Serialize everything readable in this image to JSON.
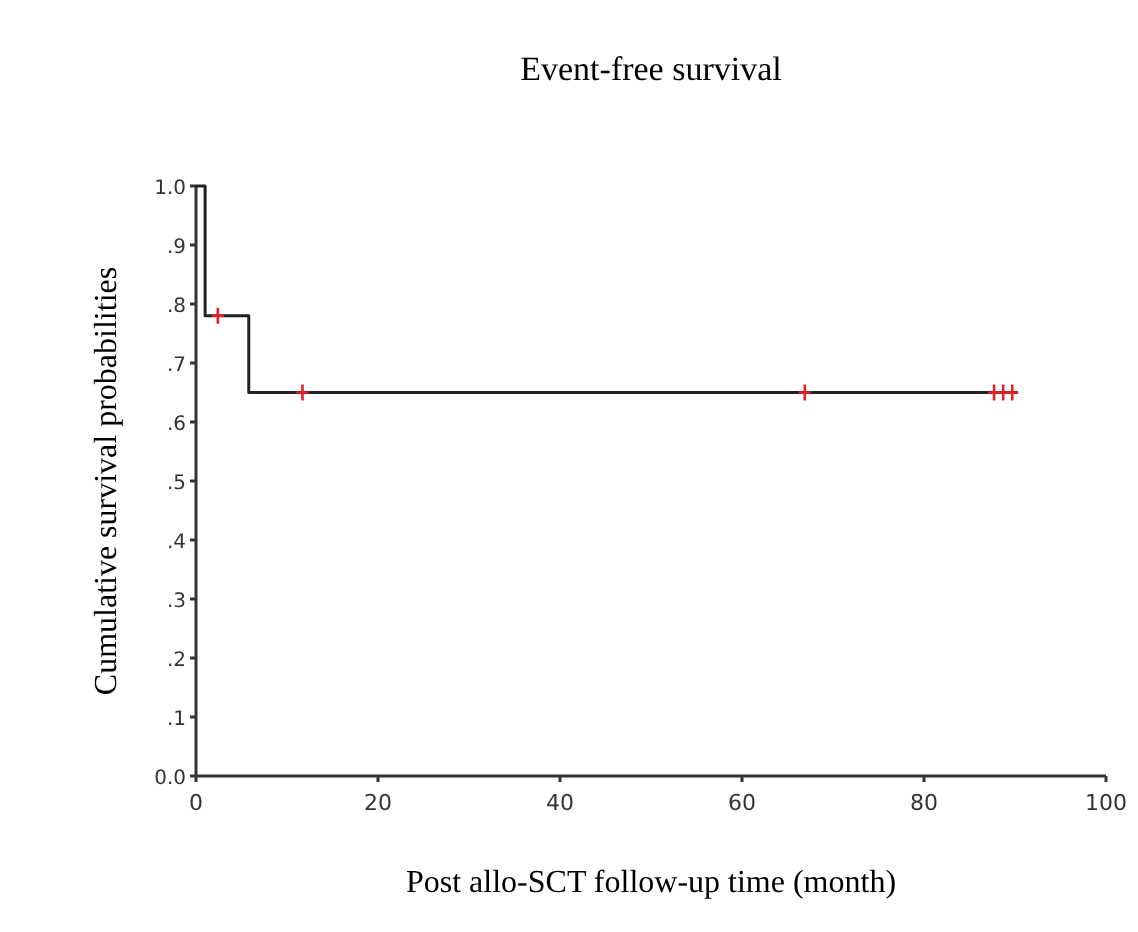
{
  "chart_data": {
    "type": "step",
    "title": "Event-free survival",
    "xlabel": "Post allo-SCT follow-up time (month)",
    "ylabel": "Cumulative survival probabilities",
    "xlim": [
      0,
      100
    ],
    "xticks": [
      0,
      20,
      40,
      60,
      80,
      100
    ],
    "ylim": [
      0,
      1
    ],
    "yticks": [
      {
        "value": 0,
        "label": "0.0"
      },
      {
        "value": 0.1,
        "label": ".1"
      },
      {
        "value": 0.2,
        "label": ".2"
      },
      {
        "value": 0.3,
        "label": ".3"
      },
      {
        "value": 0.4,
        "label": ".4"
      },
      {
        "value": 0.5,
        "label": ".5"
      },
      {
        "value": 0.6,
        "label": ".6"
      },
      {
        "value": 0.7,
        "label": ".7"
      },
      {
        "value": 0.8,
        "label": ".8"
      },
      {
        "value": 0.9,
        "label": ".9"
      },
      {
        "value": 1,
        "label": "1.0"
      }
    ],
    "grid": false,
    "series": [
      {
        "color": "#222222",
        "x": [
          0,
          1,
          5.8,
          90.3
        ],
        "values": [
          1,
          0.78,
          0.65,
          0.65
        ]
      },
      {
        "type": "scatter",
        "marker": "cross",
        "color": "#e8202a",
        "x": [
          2.4,
          11.7,
          66.9,
          87.7,
          88.7,
          89.7
        ],
        "values": [
          0.78,
          0.65,
          0.65,
          0.65,
          0.65,
          0.65
        ]
      }
    ]
  }
}
